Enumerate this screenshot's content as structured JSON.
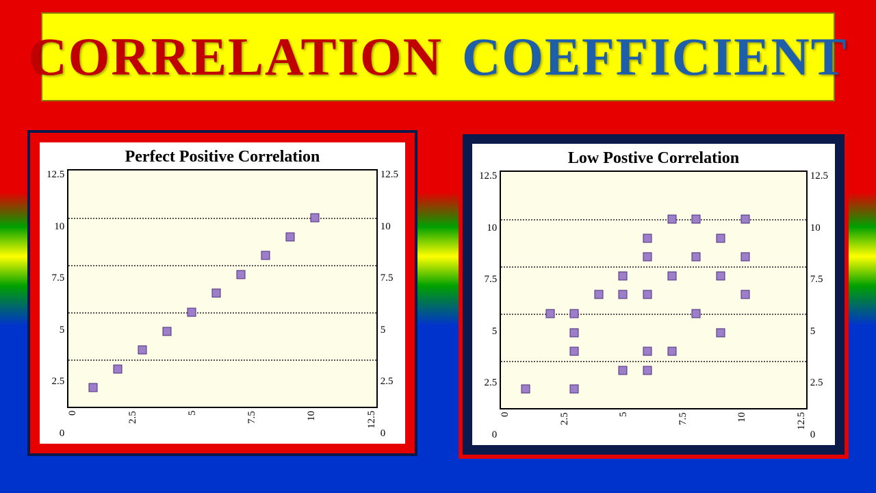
{
  "title": {
    "word1": "CORRELATION",
    "word2": "COEFFICIENT"
  },
  "banner": {
    "bg": "#ffff00",
    "word1_color": "#c00000",
    "word2_color": "#1f5fa8",
    "fontsize": 78
  },
  "background_gradient": [
    "#e60000",
    "#00a000",
    "#ffff00",
    "#00a000",
    "#0033cc"
  ],
  "chart_left": {
    "type": "scatter",
    "title": "Perfect Positive Correlation",
    "title_fontsize": 24,
    "frame_outer_color": "#0b1a4a",
    "frame_inner_color": "#e60000",
    "plot_bg": "#fdfde8",
    "card_bg": "#ffffff",
    "axis_color": "#000000",
    "grid_color": "#555555",
    "grid_style": "dotted",
    "marker_fill": "#9d7ec9",
    "marker_border": "#4a2f7a",
    "marker_shape": "square",
    "marker_size": 13,
    "xlim": [
      0,
      12.5
    ],
    "ylim": [
      0,
      12.5
    ],
    "y_ticks": [
      0,
      2.5,
      5,
      7.5,
      10,
      12.5
    ],
    "x_ticks": [
      0,
      2.5,
      5,
      7.5,
      10,
      12.5
    ],
    "y_gridlines": [
      2.5,
      5,
      7.5,
      10
    ],
    "dual_y_axis": true,
    "tick_fontsize": 15,
    "points": [
      {
        "x": 1,
        "y": 1
      },
      {
        "x": 2,
        "y": 2
      },
      {
        "x": 3,
        "y": 3
      },
      {
        "x": 4,
        "y": 4
      },
      {
        "x": 5,
        "y": 5
      },
      {
        "x": 6,
        "y": 6
      },
      {
        "x": 7,
        "y": 7
      },
      {
        "x": 8,
        "y": 8
      },
      {
        "x": 9,
        "y": 9
      },
      {
        "x": 10,
        "y": 10
      }
    ]
  },
  "chart_right": {
    "type": "scatter",
    "title": "Low Postive Correlation",
    "title_fontsize": 24,
    "frame_outer_color": "#e60000",
    "frame_inner_color": "#0b1a4a",
    "plot_bg": "#fdfde8",
    "card_bg": "#ffffff",
    "axis_color": "#000000",
    "grid_color": "#555555",
    "grid_style": "dotted",
    "marker_fill": "#9d7ec9",
    "marker_border": "#4a2f7a",
    "marker_shape": "square",
    "marker_size": 13,
    "xlim": [
      0,
      12.5
    ],
    "ylim": [
      0,
      12.5
    ],
    "y_ticks": [
      0,
      2.5,
      5,
      7.5,
      10,
      12.5
    ],
    "x_ticks": [
      0,
      2.5,
      5,
      7.5,
      10,
      12.5
    ],
    "y_gridlines": [
      2.5,
      5,
      7.5,
      10
    ],
    "dual_y_axis": true,
    "tick_fontsize": 15,
    "points": [
      {
        "x": 1,
        "y": 1
      },
      {
        "x": 2,
        "y": 5
      },
      {
        "x": 3,
        "y": 1
      },
      {
        "x": 3,
        "y": 3
      },
      {
        "x": 3,
        "y": 5
      },
      {
        "x": 3,
        "y": 4
      },
      {
        "x": 4,
        "y": 6
      },
      {
        "x": 5,
        "y": 2
      },
      {
        "x": 5,
        "y": 6
      },
      {
        "x": 5,
        "y": 7
      },
      {
        "x": 6,
        "y": 2
      },
      {
        "x": 6,
        "y": 3
      },
      {
        "x": 6,
        "y": 6
      },
      {
        "x": 6,
        "y": 8
      },
      {
        "x": 6,
        "y": 9
      },
      {
        "x": 7,
        "y": 3
      },
      {
        "x": 7,
        "y": 7
      },
      {
        "x": 7,
        "y": 10
      },
      {
        "x": 8,
        "y": 5
      },
      {
        "x": 8,
        "y": 8
      },
      {
        "x": 8,
        "y": 10
      },
      {
        "x": 9,
        "y": 4
      },
      {
        "x": 9,
        "y": 7
      },
      {
        "x": 9,
        "y": 9
      },
      {
        "x": 10,
        "y": 6
      },
      {
        "x": 10,
        "y": 8
      },
      {
        "x": 10,
        "y": 10
      }
    ]
  }
}
